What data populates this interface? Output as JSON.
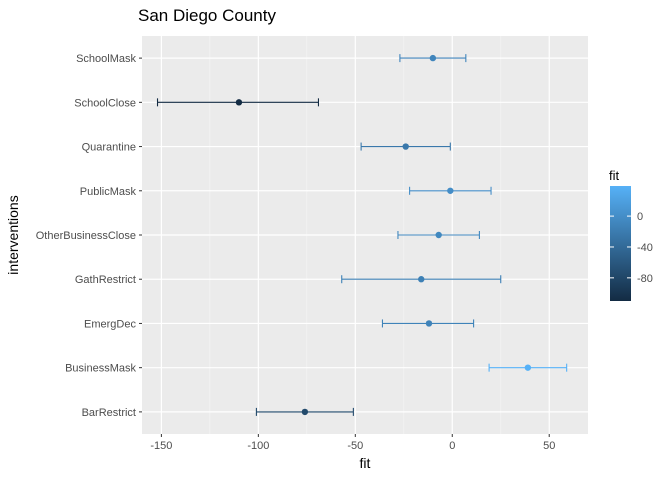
{
  "chart_data": {
    "type": "scatter",
    "subtype": "point-range",
    "title": "San Diego County",
    "xlabel": "fit",
    "ylabel": "interventions",
    "xlim": [
      -160,
      70
    ],
    "x_ticks": [
      -150,
      -100,
      -50,
      0,
      50
    ],
    "x_tick_labels": [
      "-150",
      "-100",
      "-50",
      "0",
      "50"
    ],
    "grid": true,
    "categories": [
      "SchoolMask",
      "SchoolClose",
      "Quarantine",
      "PublicMask",
      "OtherBusinessClose",
      "GathRestrict",
      "EmergDec",
      "BusinessMask",
      "BarRestrict"
    ],
    "points": [
      {
        "label": "SchoolMask",
        "fit": -10,
        "lower": -27,
        "upper": 7
      },
      {
        "label": "SchoolClose",
        "fit": -110,
        "lower": -152,
        "upper": -69
      },
      {
        "label": "Quarantine",
        "fit": -24,
        "lower": -47,
        "upper": -1
      },
      {
        "label": "PublicMask",
        "fit": -1,
        "lower": -22,
        "upper": 20
      },
      {
        "label": "OtherBusinessClose",
        "fit": -7,
        "lower": -28,
        "upper": 14
      },
      {
        "label": "GathRestrict",
        "fit": -16,
        "lower": -57,
        "upper": 25
      },
      {
        "label": "EmergDec",
        "fit": -12,
        "lower": -36,
        "upper": 11
      },
      {
        "label": "BusinessMask",
        "fit": 39,
        "lower": 19,
        "upper": 59
      },
      {
        "label": "BarRestrict",
        "fit": -76,
        "lower": -101,
        "upper": -51
      }
    ],
    "legend": {
      "title": "fit",
      "position": "right",
      "range": [
        -110,
        39
      ],
      "ticks": [
        0,
        -40,
        -80
      ],
      "tick_labels": [
        "0",
        "-40",
        "-80"
      ],
      "color_low": "#132b43",
      "color_high": "#56b1f7"
    },
    "colors": {
      "panel_bg": "#ebebeb",
      "grid_major": "#ffffff",
      "grid_minor": "#f5f5f5"
    }
  }
}
